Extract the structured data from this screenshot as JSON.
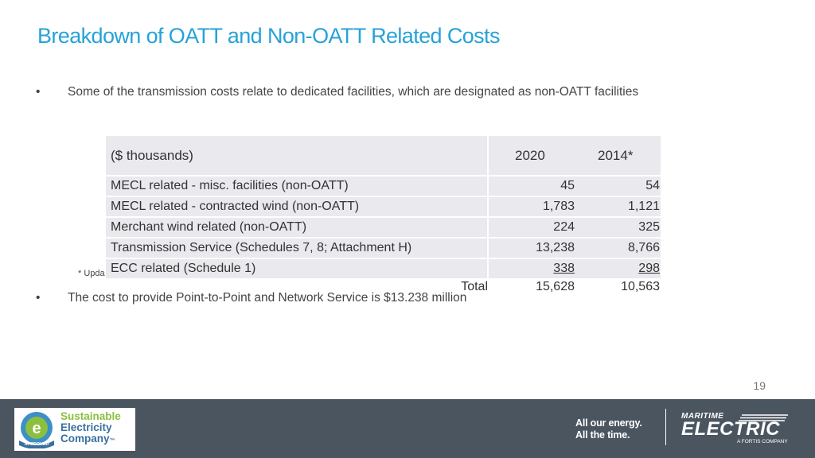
{
  "title": "Breakdown of OATT and Non-OATT Related Costs",
  "bullets": [
    "Some of the transmission costs relate to dedicated facilities, which are designated as non-OATT facilities",
    "The cost to provide Point-to-Point and Network Service is $13.238 million"
  ],
  "bullet_symbol": "•",
  "footnote": "* Upda",
  "table": {
    "headers": [
      "($ thousands)",
      "2020",
      "2014*"
    ],
    "rows": [
      {
        "label": "MECL related - misc. facilities (non-OATT)",
        "v2020": "45",
        "v2014": "54"
      },
      {
        "label": "MECL related - contracted wind (non-OATT)",
        "v2020": "1,783",
        "v2014": "1,121"
      },
      {
        "label": "Merchant wind related (non-OATT)",
        "v2020": "224",
        "v2014": "325"
      },
      {
        "label": "Transmission Service (Schedules 7, 8; Attachment H)",
        "v2020": "13,238",
        "v2014": "8,766"
      },
      {
        "label": "ECC related (Schedule 1)",
        "v2020": "338",
        "v2014": "298"
      }
    ],
    "total": {
      "label": "Total",
      "v2020": "15,628",
      "v2014": "10,563"
    }
  },
  "page_number": "19",
  "footer": {
    "sec_line1": "Sustainable",
    "sec_line2": "Electricity",
    "sec_line3": "Company",
    "sec_trademark": "™",
    "sec_badge": "APPROVED",
    "tagline1": "All our energy.",
    "tagline2": "All the time.",
    "brand_top": "MARITIME",
    "brand_main": "ELECTRIC",
    "brand_sub": "A FORTIS COMPANY"
  },
  "colors": {
    "title": "#27a2d8",
    "footer_bg": "#4a5560",
    "table_bg": "#e9e9ee"
  }
}
